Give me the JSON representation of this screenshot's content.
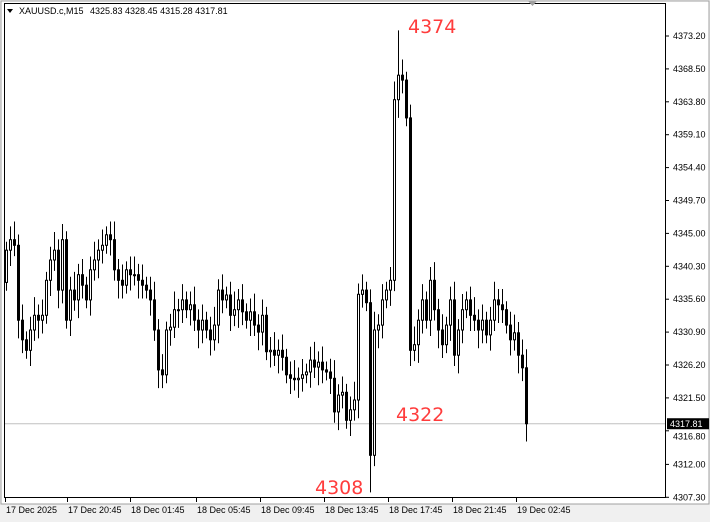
{
  "header": {
    "symbol": "XAUUSD.c,M15",
    "ohlc_text": "4325.83 4328.45 4315.28 4317.81"
  },
  "colors": {
    "background": "#ffffff",
    "candle": "#000000",
    "annotation": "#ff3c3c",
    "price_line": "#c0c0c0",
    "price_label_bg": "#000000"
  },
  "chart_data": {
    "type": "candlestick",
    "symbol": "XAUUSD.c",
    "timeframe": "M15",
    "ylim": [
      4307.3,
      4377.9
    ],
    "grid": false,
    "y_ticks": [
      "4373.20",
      "4368.50",
      "4363.80",
      "4359.10",
      "4354.40",
      "4349.70",
      "4345.00",
      "4340.30",
      "4335.60",
      "4330.90",
      "4326.20",
      "4321.50",
      "4316.80",
      "4312.00",
      "4307.30"
    ],
    "x_ticks": [
      "17 Dec 2025",
      "17 Dec 20:45",
      "18 Dec 01:45",
      "18 Dec 05:45",
      "18 Dec 09:45",
      "18 Dec 13:45",
      "18 Dec 17:45",
      "18 Dec 21:45",
      "19 Dec 02:45"
    ],
    "first_open": 4338.0,
    "closes": [
      4342.6,
      4344.1,
      4343.3,
      4332.6,
      4329.8,
      4328.3,
      4331.2,
      4333.3,
      4332.6,
      4333.3,
      4338.3,
      4341.2,
      4342.6,
      4336.9,
      4344.1,
      4332.6,
      4336.9,
      4335.5,
      4339.1,
      4337.6,
      4335.5,
      4339.8,
      4341.2,
      4342.6,
      4343.3,
      4344.8,
      4344.1,
      4339.8,
      4338.3,
      4337.6,
      4339.8,
      4339.1,
      4339.1,
      4338.3,
      4337.6,
      4336.9,
      4335.5,
      4331.2,
      4325.5,
      4324.8,
      4331.2,
      4331.6,
      4334.1,
      4334.1,
      4335.5,
      4334.1,
      4334.8,
      4332.6,
      4331.2,
      4332.6,
      4331.2,
      4329.8,
      4331.9,
      4336.9,
      4335.5,
      4336.2,
      4333.3,
      4334.1,
      4335.5,
      4333.8,
      4332.6,
      4333.8,
      4331.9,
      4330.9,
      4333.3,
      4328.1,
      4328.3,
      4327.6,
      4328.3,
      4327.3,
      4324.8,
      4324.3,
      4324.1,
      4324.3,
      4324.8,
      4325.2,
      4326.9,
      4325.9,
      4326.6,
      4325.5,
      4325.2,
      4324.3,
      4319.5,
      4321.9,
      4322.3,
      4318.3,
      4319.8,
      4321.2,
      4336.3,
      4336.9,
      4335.1,
      4313.3,
      4331.2,
      4331.9,
      4335.5,
      4336.9,
      4338.3,
      4364.1,
      4367.6,
      4366.9,
      4361.5,
      4328.3,
      4329.1,
      4332.6,
      4335.5,
      4332.6,
      4338.3,
      4334.1,
      4331.2,
      4329.1,
      4331.9,
      4335.5,
      4327.6,
      4331.2,
      4334.1,
      4335.5,
      4333.3,
      4332.6,
      4331.2,
      4332.6,
      4330.5,
      4332.6,
      4335.5,
      4334.8,
      4334.1,
      4331.9,
      4329.8,
      4330.8,
      4327.6,
      4325.8,
      4317.81
    ],
    "extremes": [
      {
        "index": 98,
        "high": 4374.0
      },
      {
        "index": 91,
        "low": 4308.0
      },
      {
        "index": 130,
        "high": 4328.45,
        "low": 4315.28
      }
    ],
    "current_price": "4317.81",
    "annotations": [
      {
        "text": "4374",
        "price": 4374
      },
      {
        "text": "4322",
        "price": 4322
      },
      {
        "text": "4308",
        "price": 4308
      }
    ]
  }
}
